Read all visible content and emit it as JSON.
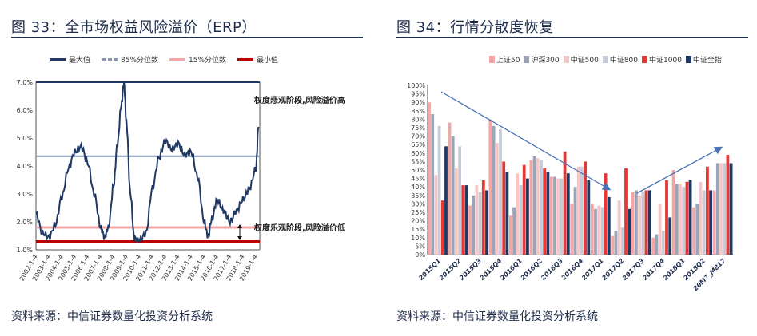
{
  "left": {
    "title": "图 33：全市场权益风险溢价（ERP）",
    "source": "资料来源：中信证券数量化投资分析系统",
    "legend": [
      {
        "label": "最大值",
        "color": "#1f3864",
        "style": "solid"
      },
      {
        "label": "85%分位数",
        "color": "#8496b0",
        "style": "dashed"
      },
      {
        "label": "15%分位数",
        "color": "#f4a6a6",
        "style": "solid"
      },
      {
        "label": "最小值",
        "color": "#c00000",
        "style": "solid"
      }
    ],
    "annotations": {
      "high": "权度悲观阶段,风险溢价高",
      "low": "权度乐观阶段,风险溢价低"
    }
  },
  "right": {
    "title": "图 34：行情分散度恢复",
    "source": "资料来源：中信证券数量化投资分析系统",
    "legend": [
      {
        "label": "上证50",
        "color": "#f4a6a6"
      },
      {
        "label": "沪深300",
        "color": "#9aa6b8"
      },
      {
        "label": "中证500",
        "color": "#f7c6c6"
      },
      {
        "label": "中证800",
        "color": "#c5ccd8"
      },
      {
        "label": "中证1000",
        "color": "#e53935"
      },
      {
        "label": "中证全指",
        "color": "#1f3864"
      }
    ]
  },
  "chart_data": [
    {
      "type": "line",
      "title": "全市场权益风险溢价（ERP）",
      "ylim": [
        1.0,
        7.0
      ],
      "yticks": [
        "1.0%",
        "2.0%",
        "3.0%",
        "4.0%",
        "5.0%",
        "6.0%",
        "7.0%"
      ],
      "xticks": [
        "2002-1-4",
        "2003-1-4",
        "2004-1-4",
        "2005-1-4",
        "2006-1-4",
        "2007-1-4",
        "2008-1-4",
        "2009-1-4",
        "2010-1-4",
        "2011-1-4",
        "2012-1-4",
        "2013-1-4",
        "2014-1-4",
        "2015-1-4",
        "2016-1-4",
        "2017-1-4",
        "2018-1-4",
        "2019-1-4"
      ],
      "reference_lines": {
        "max": 7.0,
        "p85": 4.35,
        "p15": 1.8,
        "min": 1.3
      },
      "series": [
        {
          "name": "ERP",
          "x": [
            2002.0,
            2002.5,
            2003.0,
            2003.5,
            2004.0,
            2004.5,
            2005.0,
            2005.5,
            2006.0,
            2006.5,
            2007.0,
            2007.3,
            2007.6,
            2008.0,
            2008.3,
            2008.6,
            2008.8,
            2009.0,
            2009.3,
            2009.6,
            2010.0,
            2010.5,
            2011.0,
            2011.5,
            2012.0,
            2012.5,
            2013.0,
            2013.5,
            2014.0,
            2014.5,
            2015.0,
            2015.3,
            2015.6,
            2016.0,
            2016.5,
            2017.0,
            2017.5,
            2018.0,
            2018.5,
            2019.0,
            2019.2
          ],
          "values": [
            2.3,
            1.6,
            1.45,
            1.9,
            2.9,
            3.9,
            4.5,
            4.7,
            4.1,
            3.0,
            1.8,
            1.45,
            1.8,
            3.3,
            4.8,
            6.2,
            7.0,
            5.5,
            3.0,
            1.4,
            1.3,
            1.6,
            3.2,
            4.3,
            4.9,
            4.6,
            4.8,
            4.4,
            4.5,
            3.6,
            2.0,
            1.5,
            2.1,
            2.8,
            2.4,
            2.0,
            2.4,
            2.8,
            3.2,
            3.9,
            5.4
          ]
        }
      ]
    },
    {
      "type": "bar",
      "title": "行情分散度恢复",
      "ylim": [
        0,
        100
      ],
      "yticks": [
        "0%",
        "5%",
        "10%",
        "15%",
        "20%",
        "25%",
        "30%",
        "35%",
        "40%",
        "45%",
        "50%",
        "55%",
        "60%",
        "65%",
        "70%",
        "75%",
        "80%",
        "85%",
        "90%",
        "95%",
        "100%"
      ],
      "categories": [
        "2015Q1",
        "2015Q2",
        "2015Q3",
        "2015Q4",
        "2016Q1",
        "2016Q2",
        "2016Q3",
        "2016Q4",
        "2017Q1",
        "2017Q2",
        "2017Q3",
        "2017Q4",
        "2018Q1",
        "2018Q2",
        "20M7_M817"
      ],
      "series": [
        {
          "name": "上证50",
          "values": [
            90,
            78,
            29,
            80,
            23,
            56,
            46,
            30,
            30,
            11,
            37,
            10,
            50,
            28,
            38
          ]
        },
        {
          "name": "沪深300",
          "values": [
            83,
            70,
            35,
            76,
            28,
            58,
            46,
            40,
            27,
            14,
            38,
            12,
            42,
            30,
            54
          ]
        },
        {
          "name": "中证500",
          "values": [
            47,
            51,
            41,
            66,
            48,
            57,
            45,
            52,
            29,
            32,
            35,
            30,
            42,
            43,
            54
          ]
        },
        {
          "name": "中证800",
          "values": [
            76,
            64,
            37,
            74,
            41,
            56,
            45,
            52,
            28,
            16,
            37,
            14,
            40,
            38,
            54
          ]
        },
        {
          "name": "中证1000",
          "values": [
            32,
            41,
            44,
            55,
            53,
            51,
            61,
            55,
            48,
            51,
            38,
            44,
            43,
            52,
            59
          ]
        },
        {
          "name": "中证全指",
          "values": [
            64,
            41,
            38,
            49,
            45,
            49,
            48,
            44,
            34,
            27,
            38,
            22,
            44,
            38,
            54
          ]
        }
      ],
      "arrows": [
        "down-trend",
        "up-trend"
      ]
    }
  ]
}
